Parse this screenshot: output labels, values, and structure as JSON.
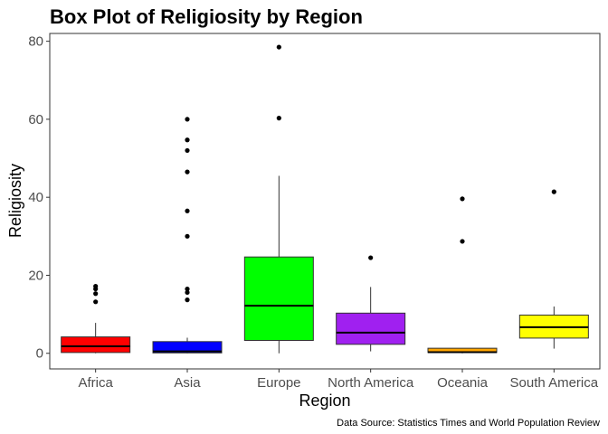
{
  "chart_data": {
    "type": "boxplot",
    "title": "Box Plot of Religiosity by Region",
    "xlabel": "Region",
    "ylabel": "Religiosity",
    "caption": "Data Source: Statistics Times and World Population Review",
    "ylim": [
      -4,
      82
    ],
    "yticks": [
      0,
      20,
      40,
      60,
      80
    ],
    "grid": false,
    "legend": "none",
    "categories": [
      "Africa",
      "Asia",
      "Europe",
      "North America",
      "Oceania",
      "South America"
    ],
    "boxes": [
      {
        "category": "Africa",
        "color": "#ff0000",
        "whisker_low": 0,
        "q1": 0.2,
        "median": 1.8,
        "q3": 4.2,
        "whisker_high": 7.8,
        "outliers": [
          13.2,
          15.3,
          16.5,
          17.2
        ]
      },
      {
        "category": "Asia",
        "color": "#0000ff",
        "whisker_low": 0,
        "q1": 0.1,
        "median": 0.5,
        "q3": 3.0,
        "whisker_high": 4.0,
        "outliers": [
          13.7,
          15.6,
          16.5,
          30.0,
          36.5,
          46.5,
          52.0,
          54.7,
          60.0
        ]
      },
      {
        "category": "Europe",
        "color": "#00ff00",
        "whisker_low": 0,
        "q1": 3.3,
        "median": 12.2,
        "q3": 24.7,
        "whisker_high": 45.5,
        "outliers": [
          60.3,
          78.5
        ]
      },
      {
        "category": "North America",
        "color": "#a020f0",
        "whisker_low": 0.5,
        "q1": 2.3,
        "median": 5.3,
        "q3": 10.3,
        "whisker_high": 17.0,
        "outliers": [
          24.5
        ]
      },
      {
        "category": "Oceania",
        "color": "#ffa500",
        "whisker_low": 0,
        "q1": 0.2,
        "median": 0.3,
        "q3": 1.3,
        "whisker_high": 1.3,
        "outliers": [
          28.7,
          39.6
        ]
      },
      {
        "category": "South America",
        "color": "#ffff00",
        "whisker_low": 1.2,
        "q1": 3.9,
        "median": 6.7,
        "q3": 9.8,
        "whisker_high": 12.0,
        "outliers": [
          41.4
        ]
      }
    ]
  }
}
